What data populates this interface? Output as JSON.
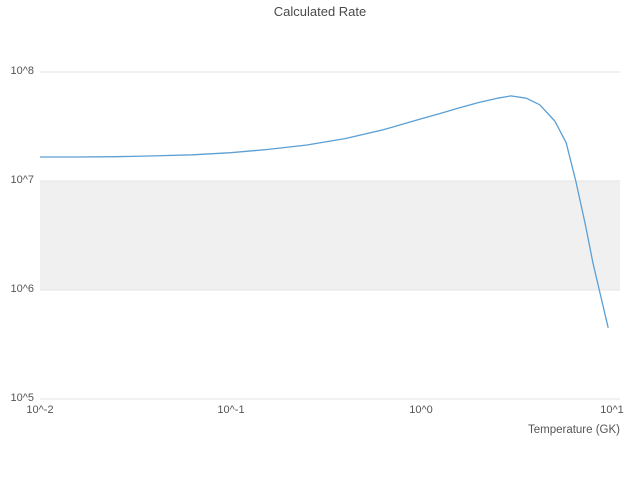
{
  "chart_data": {
    "type": "line",
    "title": "Calculated Rate",
    "xlabel": "Temperature (GK)",
    "ylabel": "",
    "x_scale": "log",
    "y_scale": "log",
    "xlim": [
      0.01,
      10
    ],
    "ylim": [
      100000,
      100000000
    ],
    "x_tick_labels": [
      "10^-2",
      "10^-1",
      "10^0",
      "10^1"
    ],
    "x_tick_values": [
      0.01,
      0.1,
      1,
      10
    ],
    "y_tick_labels": [
      "10^5",
      "10^6",
      "10^7",
      "10^8"
    ],
    "y_tick_values": [
      100000,
      1000000,
      10000000,
      100000000
    ],
    "grid": "horizontal",
    "legend": "none",
    "shaded_band": {
      "y_from": 1000000,
      "y_to": 10000000,
      "color": "#f0f0f0"
    },
    "line_color": "#5b9fd4",
    "grid_color": "#e3e3e3",
    "series": [
      {
        "name": "Calculated Rate",
        "x": [
          0.01,
          0.0158,
          0.0251,
          0.0398,
          0.0631,
          0.1,
          0.158,
          0.251,
          0.398,
          0.631,
          1.0,
          1.26,
          1.58,
          2.0,
          2.51,
          2.95,
          3.55,
          4.17,
          5.01,
          5.75,
          6.46,
          7.24,
          7.94,
          8.71,
          9.55
        ],
        "y": [
          16600000,
          16600000,
          16700000,
          17000000,
          17400000,
          18200000,
          19500000,
          21400000,
          24500000,
          29500000,
          37200000,
          41700000,
          46800000,
          52500000,
          57500000,
          60300000,
          57500000,
          50100000,
          35500000,
          22400000,
          10000000,
          4000000,
          1780000,
          890000,
          450000
        ]
      }
    ]
  }
}
